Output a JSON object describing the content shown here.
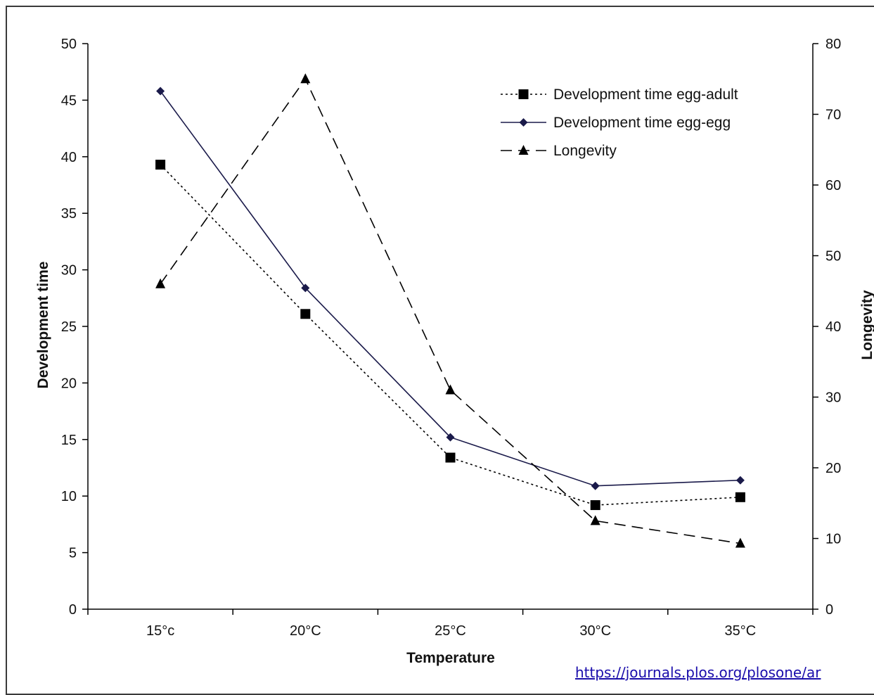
{
  "chart_data": {
    "type": "line",
    "categories": [
      "15°c",
      "20°C",
      "25°C",
      "30°C",
      "35°C"
    ],
    "xlabel": "Temperature",
    "ylabel_left": "Development time",
    "ylabel_right": "Longevity",
    "ylim_left": [
      0,
      50
    ],
    "ylim_right": [
      0,
      80
    ],
    "yticks_left": [
      0,
      5,
      10,
      15,
      20,
      25,
      30,
      35,
      40,
      45,
      50
    ],
    "yticks_right": [
      0,
      10,
      20,
      30,
      40,
      50,
      60,
      70,
      80
    ],
    "grid": false,
    "legend_position": "top-right",
    "series": [
      {
        "name": "Development time egg-adult",
        "axis": "left",
        "style": "dotted",
        "marker": "square",
        "color": "#000000",
        "values": [
          39.3,
          26.1,
          13.4,
          9.2,
          9.9
        ]
      },
      {
        "name": "Development time egg-egg",
        "axis": "left",
        "style": "solid",
        "marker": "diamond",
        "color": "#1a1a4a",
        "values": [
          45.8,
          28.4,
          15.2,
          10.9,
          11.4
        ]
      },
      {
        "name": "Longevity",
        "axis": "right",
        "style": "dashed",
        "marker": "triangle",
        "color": "#000000",
        "values": [
          46,
          75,
          31,
          12.5,
          9.3
        ]
      }
    ]
  },
  "source_link": "https://journals.plos.org/plosone/ar"
}
